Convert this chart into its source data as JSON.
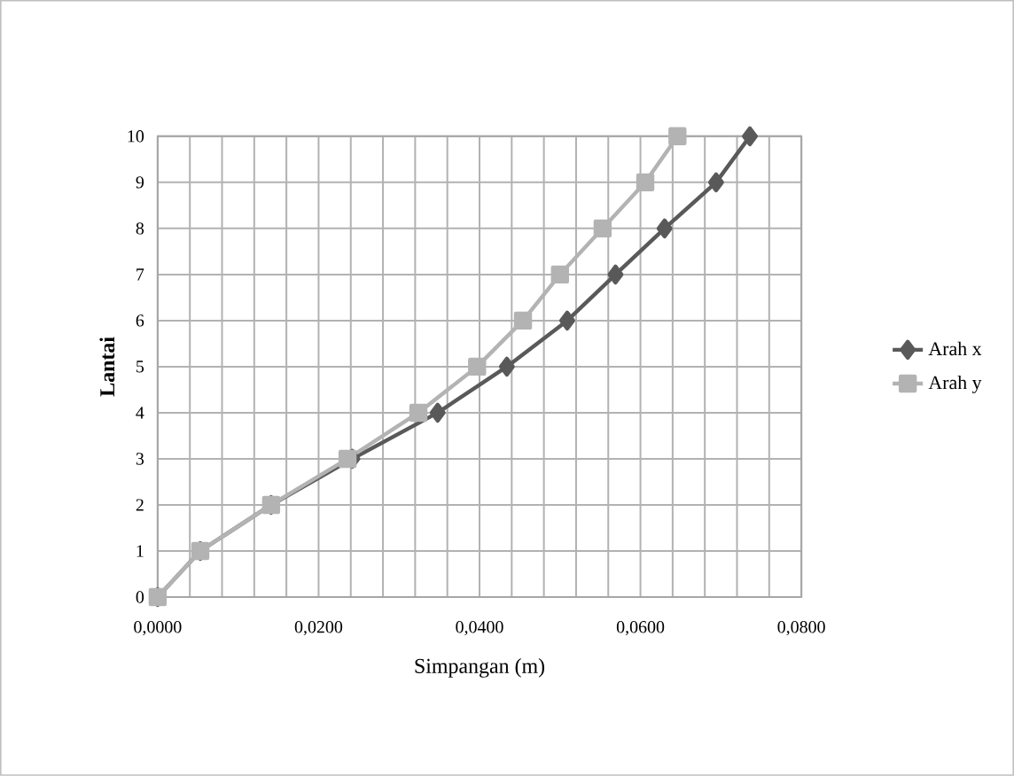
{
  "chart_data": {
    "type": "line",
    "xlabel": "Simpangan (m)",
    "ylabel": "Lantai",
    "series": [
      {
        "name": "Arah x",
        "color": "#595959",
        "marker": "diamond",
        "x": [
          0,
          0.0053,
          0.0141,
          0.0242,
          0.0348,
          0.0434,
          0.0509,
          0.0569,
          0.063,
          0.0694,
          0.0736
        ],
        "values": [
          0,
          1,
          2,
          3,
          4,
          5,
          6,
          7,
          8,
          9,
          10
        ]
      },
      {
        "name": "Arah y",
        "color": "#b3b3b3",
        "marker": "square",
        "x": [
          0,
          0.0053,
          0.0141,
          0.0236,
          0.0324,
          0.0397,
          0.0454,
          0.05,
          0.0553,
          0.0606,
          0.0646
        ],
        "values": [
          0,
          1,
          2,
          3,
          4,
          5,
          6,
          7,
          8,
          9,
          10
        ]
      }
    ],
    "xlim": [
      0,
      0.08
    ],
    "xticks": [
      {
        "value": 0,
        "label": "0,0000"
      },
      {
        "value": 0.004,
        "label": null
      },
      {
        "value": 0.008,
        "label": null
      },
      {
        "value": 0.012,
        "label": null
      },
      {
        "value": 0.016,
        "label": null
      },
      {
        "value": 0.02,
        "label": "0,0200"
      },
      {
        "value": 0.024,
        "label": null
      },
      {
        "value": 0.028,
        "label": null
      },
      {
        "value": 0.032,
        "label": null
      },
      {
        "value": 0.036,
        "label": null
      },
      {
        "value": 0.04,
        "label": "0,0400"
      },
      {
        "value": 0.044,
        "label": null
      },
      {
        "value": 0.048,
        "label": null
      },
      {
        "value": 0.052,
        "label": null
      },
      {
        "value": 0.056,
        "label": null
      },
      {
        "value": 0.06,
        "label": "0,0600"
      },
      {
        "value": 0.064,
        "label": null
      },
      {
        "value": 0.068,
        "label": null
      },
      {
        "value": 0.072,
        "label": null
      },
      {
        "value": 0.076,
        "label": null
      },
      {
        "value": 0.08,
        "label": "0,0800"
      }
    ],
    "ylim": [
      0,
      10
    ],
    "yticks": [
      0,
      1,
      2,
      3,
      4,
      5,
      6,
      7,
      8,
      9,
      10
    ],
    "grid": true,
    "legend": "right",
    "line_style": "solid"
  }
}
